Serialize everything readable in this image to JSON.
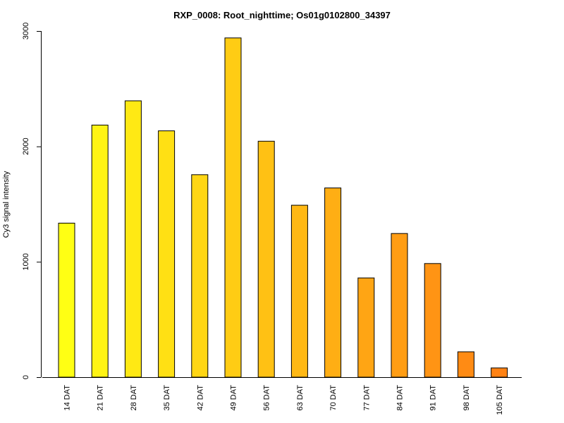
{
  "chart_data": {
    "type": "bar",
    "title": "RXP_0008: Root_nighttime; Os01g0102800_34397",
    "xlabel": "",
    "ylabel": "Cy3 signal intensity",
    "ylim": [
      0,
      3000
    ],
    "yticks": [
      0,
      1000,
      2000,
      3000
    ],
    "grid": false,
    "categories": [
      "14 DAT",
      "21 DAT",
      "28 DAT",
      "35 DAT",
      "42 DAT",
      "49 DAT",
      "56 DAT",
      "63 DAT",
      "70 DAT",
      "77 DAT",
      "84 DAT",
      "91 DAT",
      "98 DAT",
      "105 DAT"
    ],
    "values": [
      1335,
      2185,
      2395,
      2135,
      1755,
      2940,
      2045,
      1490,
      1640,
      860,
      1245,
      985,
      220,
      80
    ],
    "colors": [
      "#ffff14",
      "#fff414",
      "#ffe914",
      "#ffe014",
      "#ffd614",
      "#ffcc14",
      "#ffc114",
      "#ffb814",
      "#ffae14",
      "#ffa514",
      "#ff9d14",
      "#ff9414",
      "#ff8b14",
      "#ff8214"
    ]
  }
}
